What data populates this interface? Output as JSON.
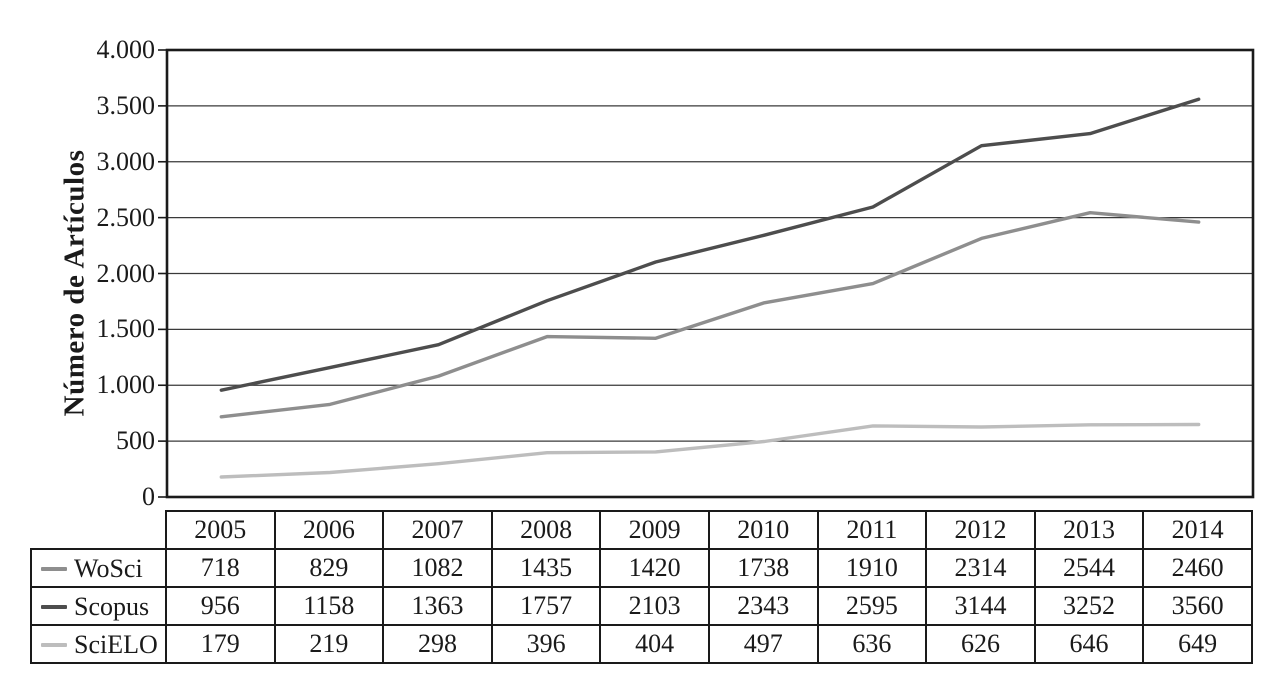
{
  "chart_data": {
    "type": "line",
    "title": "",
    "xlabel": "",
    "ylabel": "Número de Artículos",
    "categories": [
      "2005",
      "2006",
      "2007",
      "2008",
      "2009",
      "2010",
      "2011",
      "2012",
      "2013",
      "2014"
    ],
    "series": [
      {
        "name": "WoSci",
        "color": "#8e8e8e",
        "values": [
          718,
          829,
          1082,
          1435,
          1420,
          1738,
          1910,
          2314,
          2544,
          2460
        ]
      },
      {
        "name": "Scopus",
        "color": "#4d4d4d",
        "values": [
          956,
          1158,
          1363,
          1757,
          2103,
          2343,
          2595,
          3144,
          3252,
          3560
        ]
      },
      {
        "name": "SciELO",
        "color": "#bdbdbd",
        "values": [
          179,
          219,
          298,
          396,
          404,
          497,
          636,
          626,
          646,
          649
        ]
      }
    ],
    "ylim": [
      0,
      4000
    ],
    "ytick_interval": 500,
    "yticks_labels": [
      "4.000",
      "3.500",
      "3.000",
      "2.500",
      "2.000",
      "1.500",
      "1.000",
      "500",
      "0"
    ],
    "grid": "horizontal",
    "legend_position": "table-rows-left",
    "axis_color": "#1a1a1a",
    "gridline_color": "#3a3a3a"
  }
}
